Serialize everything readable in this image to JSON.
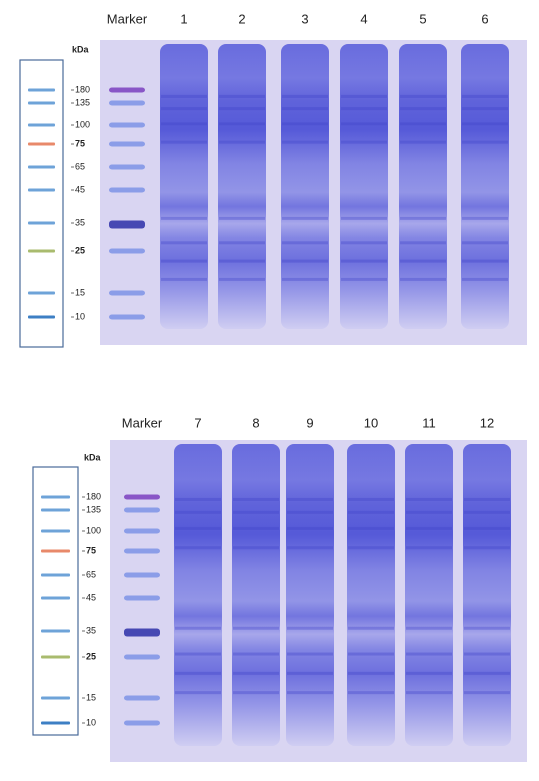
{
  "panels": [
    {
      "marker_label": "Marker",
      "lanes": [
        "1",
        "2",
        "3",
        "4",
        "5",
        "6"
      ],
      "unit": "kDa",
      "ladder": [
        "180",
        "135",
        "100",
        "75",
        "65",
        "45",
        "35",
        "25",
        "15",
        "10"
      ]
    },
    {
      "marker_label": "Marker",
      "lanes": [
        "7",
        "8",
        "9",
        "10",
        "11",
        "12"
      ],
      "unit": "kDa",
      "ladder": [
        "180",
        "135",
        "100",
        "75",
        "65",
        "45",
        "35",
        "25",
        "15",
        "10"
      ]
    }
  ]
}
